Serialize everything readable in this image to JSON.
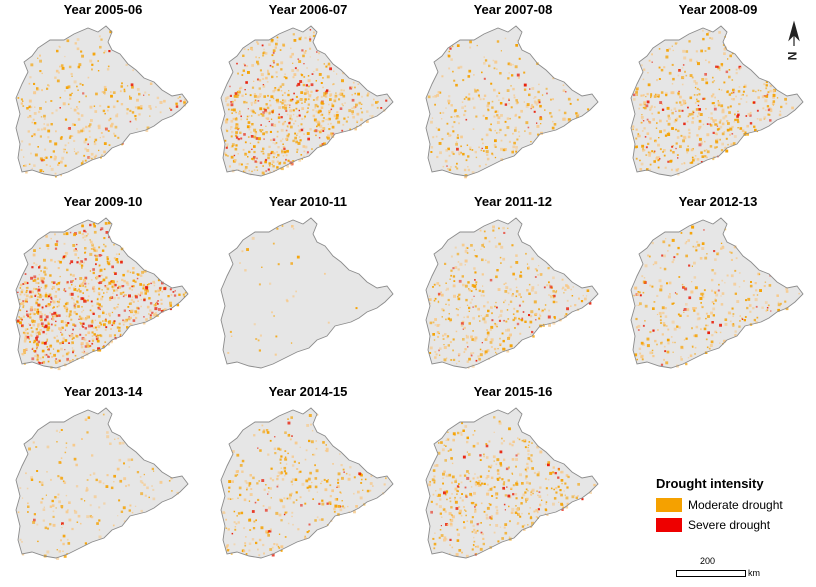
{
  "panels": [
    {
      "title": "Year 2005-06",
      "intensity": 0.35,
      "severe": 0.06
    },
    {
      "title": "Year 2006-07",
      "intensity": 0.75,
      "severe": 0.14
    },
    {
      "title": "Year 2007-08",
      "intensity": 0.35,
      "severe": 0.06
    },
    {
      "title": "Year 2008-09",
      "intensity": 0.55,
      "severe": 0.1
    },
    {
      "title": "Year 2009-10",
      "intensity": 0.95,
      "severe": 0.25
    },
    {
      "title": "Year 2010-11",
      "intensity": 0.04,
      "severe": 0.0
    },
    {
      "title": "Year 2011-12",
      "intensity": 0.45,
      "severe": 0.07
    },
    {
      "title": "Year 2012-13",
      "intensity": 0.35,
      "severe": 0.05
    },
    {
      "title": "Year 2013-14",
      "intensity": 0.2,
      "severe": 0.02
    },
    {
      "title": "Year 2014-15",
      "intensity": 0.35,
      "severe": 0.06
    },
    {
      "title": "Year 2015-16",
      "intensity": 0.5,
      "severe": 0.08
    }
  ],
  "legend": {
    "title": "Drought intensity",
    "items": [
      {
        "label": "Moderate drought",
        "color": "#f5a100"
      },
      {
        "label": "Severe drought",
        "color": "#ee0000"
      }
    ]
  },
  "scale": {
    "value": "200",
    "unit": "km"
  },
  "north": {
    "label": "N"
  },
  "colors": {
    "land": "#e6e6e6",
    "border": "#8c8c8c",
    "moderate": "#f5a100",
    "light": "#f7c98a",
    "severe": "#e8210c"
  }
}
